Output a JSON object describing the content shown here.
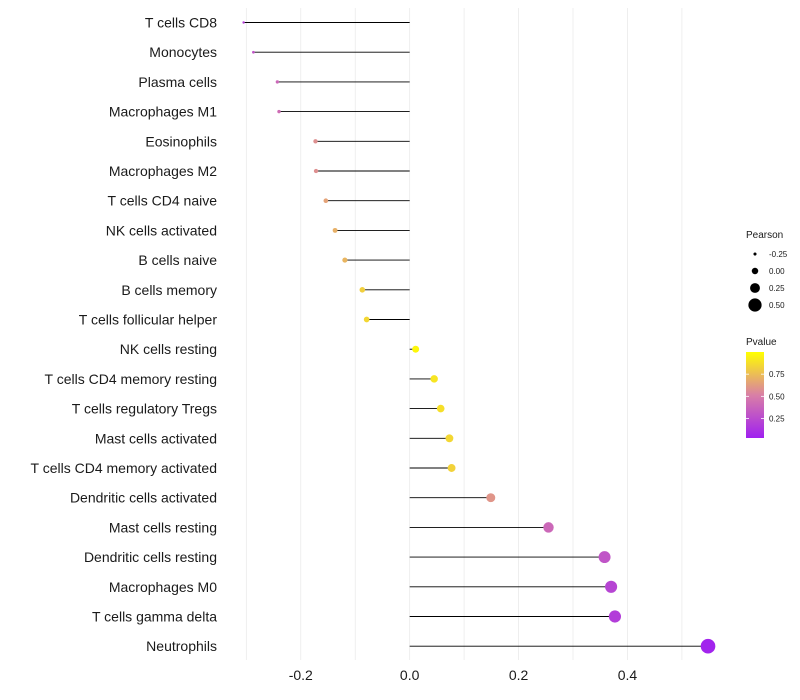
{
  "chart_data": {
    "type": "lollipop",
    "categories": [
      "T cells CD8",
      "Monocytes",
      "Plasma cells",
      "Macrophages M1",
      "Eosinophils",
      "Macrophages M2",
      "T cells CD4 naive",
      "NK cells activated",
      "B cells naive",
      "B cells memory",
      "T cells follicular helper",
      "NK cells resting",
      "T cells CD4 memory resting",
      "T cells regulatory  Tregs ",
      "Mast cells activated",
      "T cells CD4 memory activated",
      "Dendritic cells activated",
      "Mast cells resting",
      "Dendritic cells resting",
      "Macrophages M0",
      "T cells gamma delta",
      "Neutrophils"
    ],
    "pearson": [
      -0.305,
      -0.287,
      -0.243,
      -0.24,
      -0.173,
      -0.172,
      -0.154,
      -0.137,
      -0.119,
      -0.087,
      -0.079,
      0.011,
      0.045,
      0.057,
      0.073,
      0.077,
      0.149,
      0.255,
      0.358,
      0.37,
      0.377,
      0.548
    ],
    "pvalue": [
      0.2,
      0.3,
      0.4,
      0.42,
      0.58,
      0.58,
      0.65,
      0.7,
      0.72,
      0.82,
      0.85,
      0.97,
      0.9,
      0.88,
      0.85,
      0.83,
      0.6,
      0.4,
      0.3,
      0.22,
      0.18,
      0.05
    ],
    "xlim": [
      -0.33,
      0.57
    ],
    "xticks": [
      -0.2,
      0.0,
      0.2,
      0.4
    ],
    "xtick_labels": [
      "-0.2",
      "0.0",
      "0.2",
      "0.4"
    ],
    "xlabel": "",
    "ylabel": "",
    "grid": true,
    "legend_size": {
      "title": "Pearson",
      "entries": [
        {
          "label": "-0.25",
          "value": -0.25
        },
        {
          "label": "0.00",
          "value": 0.0
        },
        {
          "label": "0.25",
          "value": 0.25
        },
        {
          "label": "0.50",
          "value": 0.5
        }
      ]
    },
    "legend_color": {
      "title": "Pvalue",
      "ticks": [
        {
          "label": "0.75",
          "value": 0.75
        },
        {
          "label": "0.50",
          "value": 0.5
        },
        {
          "label": "0.25",
          "value": 0.25
        }
      ],
      "range": [
        0.03,
        1.0
      ],
      "low_color": "#a020f0",
      "mid_color": "#d97fa6",
      "high_color": "#ffff00"
    },
    "legend_position": "right",
    "stem_color": "#000000",
    "grid_color": "#ebebeb"
  }
}
